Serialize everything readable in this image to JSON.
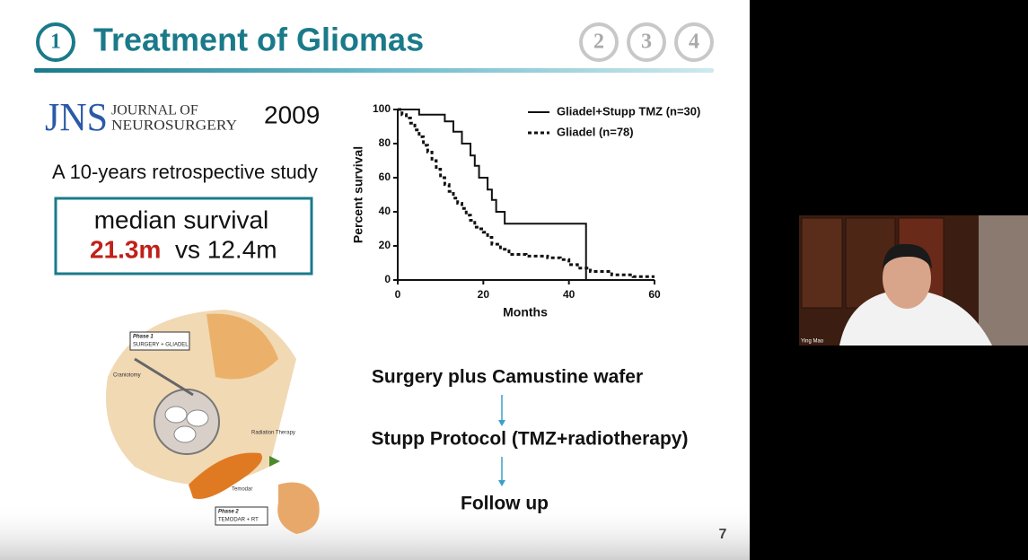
{
  "slide": {
    "title_number": "1",
    "title": "Treatment of Gliomas",
    "other_numbers": [
      "2",
      "3",
      "4"
    ],
    "journal": {
      "abbr": "JNS",
      "name_lines": [
        "JOURNAL OF",
        "NEUROSURGERY"
      ]
    },
    "year": "2009",
    "study": "A 10-years retrospective study",
    "result": {
      "label": "median survival",
      "value": "21.3m",
      "comparison": "vs 12.4m"
    },
    "illustration": {
      "labels": [
        "Phase 1",
        "SURGERY + GLIADEL",
        "Phase 2",
        "TEMODAR + RT",
        "Radiation Therapy",
        "Temodar",
        "Craniotomy"
      ]
    },
    "flow": [
      "Surgery plus Camustine wafer",
      "Stupp Protocol (TMZ+radiotherapy)",
      "Follow up"
    ],
    "page_number": "7"
  },
  "chart_data": {
    "type": "line",
    "step": true,
    "xlabel": "Months",
    "ylabel": "Percent survival",
    "xlim": [
      0,
      60
    ],
    "ylim": [
      0,
      100
    ],
    "xticks": [
      0,
      20,
      40,
      60
    ],
    "yticks": [
      0,
      20,
      40,
      60,
      80,
      100
    ],
    "series": [
      {
        "name": "Gliadel+Stupp TMZ (n=30)",
        "color": "#111111",
        "dashed": false,
        "x": [
          0,
          5,
          11,
          13,
          15,
          17,
          18,
          19,
          21,
          22,
          23,
          25,
          44
        ],
        "values": [
          100,
          97,
          93,
          87,
          80,
          73,
          67,
          60,
          53,
          47,
          40,
          33,
          0
        ]
      },
      {
        "name": "Gliadel (n=78)",
        "color": "#111111",
        "dashed": true,
        "x": [
          0,
          1,
          2,
          3,
          4,
          5,
          6,
          7,
          8,
          9,
          10,
          11,
          12,
          13,
          14,
          15,
          16,
          17,
          18,
          19,
          20,
          21,
          22,
          24,
          26,
          30,
          35,
          38,
          40,
          42,
          45,
          50,
          55,
          60
        ],
        "values": [
          100,
          97,
          95,
          92,
          88,
          84,
          79,
          75,
          70,
          65,
          60,
          56,
          52,
          48,
          45,
          42,
          38,
          35,
          31,
          30,
          28,
          25,
          21,
          18,
          15,
          14,
          13,
          12,
          9,
          7,
          5,
          3,
          2,
          2
        ]
      }
    ]
  },
  "video": {
    "speaker": "Ying Mao"
  }
}
